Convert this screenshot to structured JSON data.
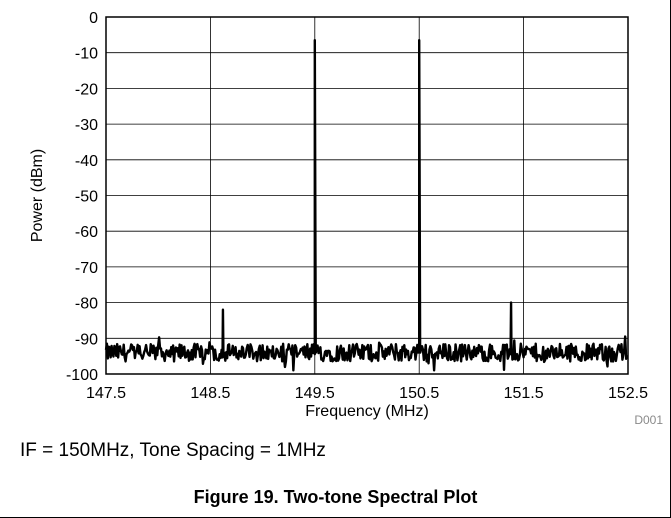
{
  "chart_data": {
    "type": "line",
    "title": "",
    "xlabel": "Frequency (MHz)",
    "ylabel": "Power (dBm)",
    "xlim": [
      147.5,
      152.5
    ],
    "ylim": [
      -100,
      0
    ],
    "xticks": [
      147.5,
      148.5,
      149.5,
      150.5,
      151.5,
      152.5
    ],
    "xtick_labels": [
      "147.5",
      "148.5",
      "149.5",
      "150.5",
      "151.5",
      "152.5"
    ],
    "yticks": [
      0,
      -10,
      -20,
      -30,
      -40,
      -50,
      -60,
      -70,
      -80,
      -90,
      -100
    ],
    "ytick_labels": [
      "0",
      "-10",
      "-20",
      "-30",
      "-40",
      "-50",
      "-60",
      "-70",
      "-80",
      "-90",
      "-100"
    ],
    "grid": true,
    "noise_floor_dbm": -94,
    "series": [
      {
        "color": "#000000",
        "peaks": [
          {
            "x": 148.62,
            "y": -82
          },
          {
            "x": 149.5,
            "y": -6.5
          },
          {
            "x": 150.5,
            "y": -6.5
          },
          {
            "x": 151.38,
            "y": -80
          }
        ]
      }
    ]
  },
  "figure_code": "D001",
  "note": "IF = 150MHz, Tone Spacing = 1MHz",
  "caption": "Figure 19. Two-tone Spectral Plot"
}
